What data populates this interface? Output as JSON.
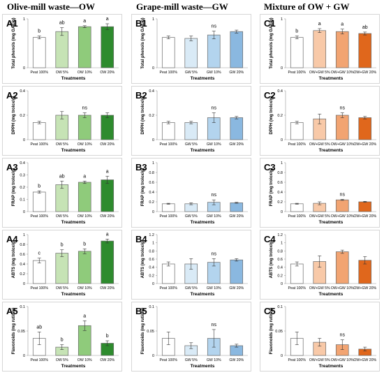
{
  "column_titles": [
    "Olive-mill waste—OW",
    "Grape-mill waste—GW",
    "Mixture of OW + GW"
  ],
  "chart_data": [
    {
      "id": "A1",
      "type": "bar",
      "ylabel": "Total phenols (mg GAE/g)",
      "xlabel": "Treatments",
      "ylim": [
        0,
        1
      ],
      "yticks": [
        0,
        1
      ],
      "categories": [
        "Peat 100%",
        "OW 5%",
        "OW 10%",
        "OW 20%"
      ],
      "values": [
        0.62,
        0.74,
        0.84,
        0.84
      ],
      "errors": [
        0.03,
        0.08,
        0.02,
        0.06
      ],
      "letters": [
        "b",
        "ab",
        "a",
        "a"
      ],
      "colors": [
        "#ffffff",
        "#c6e3b5",
        "#8fcb7b",
        "#2e8b2e"
      ]
    },
    {
      "id": "B1",
      "type": "bar",
      "ylabel": "Total phenols (mg GAE/g)",
      "xlabel": "Treatments",
      "ylim": [
        0,
        1
      ],
      "yticks": [
        0,
        1
      ],
      "categories": [
        "Peat 100%",
        "GW 5%",
        "GW 10%",
        "GW 20%"
      ],
      "values": [
        0.62,
        0.6,
        0.67,
        0.74
      ],
      "errors": [
        0.03,
        0.05,
        0.08,
        0.03
      ],
      "letters": [
        "",
        "",
        "ns",
        ""
      ],
      "colors": [
        "#ffffff",
        "#d9eaf6",
        "#b3d4ee",
        "#8ab8e0"
      ]
    },
    {
      "id": "C1",
      "type": "bar",
      "ylabel": "Total phenols (mg GAE/g)",
      "xlabel": "Treatments",
      "ylim": [
        0,
        1
      ],
      "yticks": [
        0,
        1
      ],
      "categories": [
        "Peat 100%",
        "OW+GW 5%",
        "OW+GW 10%",
        "OW+GW 20%"
      ],
      "values": [
        0.62,
        0.76,
        0.74,
        0.7
      ],
      "errors": [
        0.03,
        0.04,
        0.05,
        0.03
      ],
      "letters": [
        "b",
        "a",
        "a",
        "ab"
      ],
      "colors": [
        "#ffffff",
        "#f8c9a8",
        "#f2a472",
        "#e0671c"
      ]
    },
    {
      "id": "A2",
      "type": "bar",
      "ylabel": "DPPH (mg trolox/g)",
      "xlabel": "Treatments",
      "ylim": [
        0,
        0.4
      ],
      "yticks": [
        0,
        0.2,
        0.4
      ],
      "categories": [
        "Peat 100%",
        "OW 5%",
        "OW 10%",
        "OW 20%"
      ],
      "values": [
        0.14,
        0.2,
        0.2,
        0.2
      ],
      "errors": [
        0.01,
        0.03,
        0.02,
        0.02
      ],
      "letters": [
        "",
        "",
        "ns",
        ""
      ],
      "colors": [
        "#ffffff",
        "#c6e3b5",
        "#8fcb7b",
        "#2e8b2e"
      ]
    },
    {
      "id": "B2",
      "type": "bar",
      "ylabel": "DPPH (mg trolox/g)",
      "xlabel": "Treatments",
      "ylim": [
        0,
        0.4
      ],
      "yticks": [
        0,
        0.2,
        0.4
      ],
      "categories": [
        "Peat 100%",
        "GW 5%",
        "GW 10%",
        "GW 20%"
      ],
      "values": [
        0.14,
        0.14,
        0.18,
        0.18
      ],
      "errors": [
        0.01,
        0.01,
        0.04,
        0.01
      ],
      "letters": [
        "",
        "",
        "ns",
        ""
      ],
      "colors": [
        "#ffffff",
        "#d9eaf6",
        "#b3d4ee",
        "#8ab8e0"
      ]
    },
    {
      "id": "C2",
      "type": "bar",
      "ylabel": "DPPH (mg trolox/g)",
      "xlabel": "Treatments",
      "ylim": [
        0,
        0.4
      ],
      "yticks": [
        0,
        0.2,
        0.4
      ],
      "categories": [
        "Peat 100%",
        "OW+GW 5%",
        "OW+GW 10%",
        "OW+GW 20%"
      ],
      "values": [
        0.14,
        0.17,
        0.2,
        0.18
      ],
      "errors": [
        0.01,
        0.04,
        0.02,
        0.01
      ],
      "letters": [
        "",
        "",
        "ns",
        ""
      ],
      "colors": [
        "#ffffff",
        "#f8c9a8",
        "#f2a472",
        "#e0671c"
      ]
    },
    {
      "id": "A3",
      "type": "bar",
      "ylabel": "FRAP (mg trolox/g)",
      "xlabel": "Treatments",
      "ylim": [
        0,
        0.4
      ],
      "yticks": [
        0,
        0.1,
        0.2,
        0.3,
        0.4
      ],
      "categories": [
        "Peat 100%",
        "OW 5%",
        "OW 10%",
        "OW 20%"
      ],
      "values": [
        0.16,
        0.22,
        0.24,
        0.26
      ],
      "errors": [
        0.01,
        0.03,
        0.01,
        0.03
      ],
      "letters": [
        "b",
        "ab",
        "a",
        "a"
      ],
      "colors": [
        "#ffffff",
        "#c6e3b5",
        "#8fcb7b",
        "#2e8b2e"
      ]
    },
    {
      "id": "B3",
      "type": "bar",
      "ylabel": "FRAP (mg trolox/g)",
      "xlabel": "Treatments",
      "ylim": [
        0,
        1.0
      ],
      "yticks": [
        0,
        0.2,
        0.4,
        0.6,
        0.8,
        1.0
      ],
      "categories": [
        "Peat 100%",
        "GW 5%",
        "GW 10%",
        "GW 20%"
      ],
      "values": [
        0.16,
        0.16,
        0.19,
        0.18
      ],
      "errors": [
        0.01,
        0.02,
        0.05,
        0.01
      ],
      "letters": [
        "",
        "",
        "ns",
        ""
      ],
      "colors": [
        "#ffffff",
        "#d9eaf6",
        "#b3d4ee",
        "#8ab8e0"
      ]
    },
    {
      "id": "C3",
      "type": "bar",
      "ylabel": "FRAP (mg trolox/g)",
      "xlabel": "Treatments",
      "ylim": [
        0,
        1.0
      ],
      "yticks": [
        0,
        0.2,
        0.4,
        0.6,
        0.8,
        1.0
      ],
      "categories": [
        "Peat 100%",
        "OW+GW 5%",
        "OW+GW 10%",
        "OW+GW 20%"
      ],
      "values": [
        0.16,
        0.17,
        0.24,
        0.2
      ],
      "errors": [
        0.01,
        0.03,
        0.01,
        0.01
      ],
      "letters": [
        "",
        "",
        "ns",
        ""
      ],
      "colors": [
        "#ffffff",
        "#f8c9a8",
        "#f2a472",
        "#e0671c"
      ]
    },
    {
      "id": "A4",
      "type": "bar",
      "ylabel": "ABTS (mg trolox/g)",
      "xlabel": "Treatments",
      "ylim": [
        0,
        1.0
      ],
      "yticks": [
        0,
        0.2,
        0.4,
        0.6,
        0.8,
        1.0
      ],
      "categories": [
        "Peat 100%",
        "OW 5%",
        "OW 10%",
        "OW 20%"
      ],
      "values": [
        0.47,
        0.62,
        0.66,
        0.87
      ],
      "errors": [
        0.05,
        0.07,
        0.05,
        0.04
      ],
      "letters": [
        "c",
        "b",
        "b",
        "a"
      ],
      "colors": [
        "#ffffff",
        "#c6e3b5",
        "#8fcb7b",
        "#2e8b2e"
      ]
    },
    {
      "id": "B4",
      "type": "bar",
      "ylabel": "ABTS (mg trolox/g)",
      "xlabel": "Treatments",
      "ylim": [
        0,
        1.2
      ],
      "yticks": [
        0,
        0.2,
        0.4,
        0.6,
        0.8,
        1.0,
        1.2
      ],
      "categories": [
        "Peat 100%",
        "GW 5%",
        "GW 10%",
        "GW 20%"
      ],
      "values": [
        0.48,
        0.48,
        0.52,
        0.58
      ],
      "errors": [
        0.05,
        0.13,
        0.09,
        0.03
      ],
      "letters": [
        "",
        "",
        "ns",
        ""
      ],
      "colors": [
        "#ffffff",
        "#d9eaf6",
        "#b3d4ee",
        "#8ab8e0"
      ]
    },
    {
      "id": "C4",
      "type": "bar",
      "ylabel": "ABTS (mg trolox/g)",
      "xlabel": "Treatments",
      "ylim": [
        0,
        1.2
      ],
      "yticks": [
        0,
        0.2,
        0.4,
        0.6,
        0.8,
        1.0,
        1.2
      ],
      "categories": [
        "Peat 100%",
        "OW+GW 5%",
        "OW+GW 10%",
        "OW+GW 20%"
      ],
      "values": [
        0.48,
        0.54,
        0.78,
        0.57
      ],
      "errors": [
        0.05,
        0.14,
        0.04,
        0.09
      ],
      "letters": [
        "",
        "",
        "",
        ""
      ],
      "colors": [
        "#ffffff",
        "#f8c9a8",
        "#f2a472",
        "#e0671c"
      ]
    },
    {
      "id": "A5",
      "type": "bar",
      "ylabel": "Flavonoids (mg rutin/g)",
      "xlabel": "Treatments",
      "ylim": [
        0,
        0.1
      ],
      "yticks": [
        0,
        0.05,
        0.1
      ],
      "categories": [
        "Peat 100%",
        "OW 5%",
        "OW 10%",
        "OW 20%"
      ],
      "values": [
        0.035,
        0.017,
        0.061,
        0.025
      ],
      "errors": [
        0.013,
        0.005,
        0.01,
        0.005
      ],
      "letters": [
        "ab",
        "b",
        "a",
        "b"
      ],
      "colors": [
        "#ffffff",
        "#c6e3b5",
        "#8fcb7b",
        "#2e8b2e"
      ]
    },
    {
      "id": "B5",
      "type": "bar",
      "ylabel": "Flavonoids (mg rutin/g)",
      "xlabel": "Treatments",
      "ylim": [
        0,
        0.1
      ],
      "yticks": [
        0,
        0.05,
        0.1
      ],
      "categories": [
        "Peat 100%",
        "GW 5%",
        "GW 10%",
        "GW 20%"
      ],
      "values": [
        0.035,
        0.02,
        0.035,
        0.02
      ],
      "errors": [
        0.013,
        0.006,
        0.018,
        0.003
      ],
      "letters": [
        "",
        "",
        "ns",
        ""
      ],
      "colors": [
        "#ffffff",
        "#d9eaf6",
        "#b3d4ee",
        "#8ab8e0"
      ]
    },
    {
      "id": "C5",
      "type": "bar",
      "ylabel": "Flavonoids (mg rutin/g)",
      "xlabel": "Treatments",
      "ylim": [
        0,
        0.1
      ],
      "yticks": [
        0,
        0.05,
        0.1
      ],
      "categories": [
        "Peat 100%",
        "OW+GW 5%",
        "OW+GW 10%",
        "OW+GW 20%"
      ],
      "values": [
        0.035,
        0.027,
        0.022,
        0.013
      ],
      "errors": [
        0.013,
        0.008,
        0.01,
        0.004
      ],
      "letters": [
        "",
        "",
        "ns",
        ""
      ],
      "colors": [
        "#ffffff",
        "#f8c9a8",
        "#f2a472",
        "#e0671c"
      ]
    }
  ]
}
